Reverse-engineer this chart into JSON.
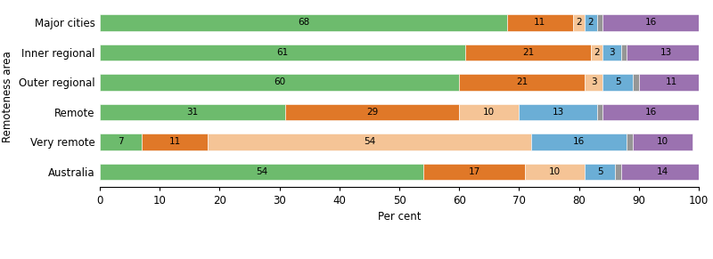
{
  "categories": [
    "Major cities",
    "Inner regional",
    "Outer regional",
    "Remote",
    "Very remote",
    "Australia"
  ],
  "series": {
    "Doctor/GP": [
      68,
      61,
      60,
      31,
      7,
      54
    ],
    "AMS": [
      11,
      21,
      21,
      29,
      11,
      17
    ],
    "Community clinic": [
      2,
      2,
      3,
      10,
      54,
      10
    ],
    "Hospital": [
      2,
      3,
      5,
      13,
      16,
      5
    ],
    "Other": [
      1,
      1,
      1,
      1,
      1,
      1
    ],
    "No usual provider": [
      16,
      13,
      11,
      16,
      10,
      14
    ]
  },
  "colors": {
    "Doctor/GP": "#6dbb6d",
    "AMS": "#e07828",
    "Community clinic": "#f5c496",
    "Hospital": "#6baed6",
    "Other": "#969696",
    "No usual provider": "#9b72b0"
  },
  "xlabel": "Per cent",
  "ylabel": "Remoteness area",
  "xlim": [
    0,
    100
  ],
  "xticks": [
    0,
    10,
    20,
    30,
    40,
    50,
    60,
    70,
    80,
    90,
    100
  ],
  "bar_height": 0.55,
  "figsize": [
    8.0,
    2.91
  ],
  "dpi": 100,
  "label_fontsize": 7.5,
  "axis_fontsize": 8.5,
  "legend_fontsize": 7.5
}
